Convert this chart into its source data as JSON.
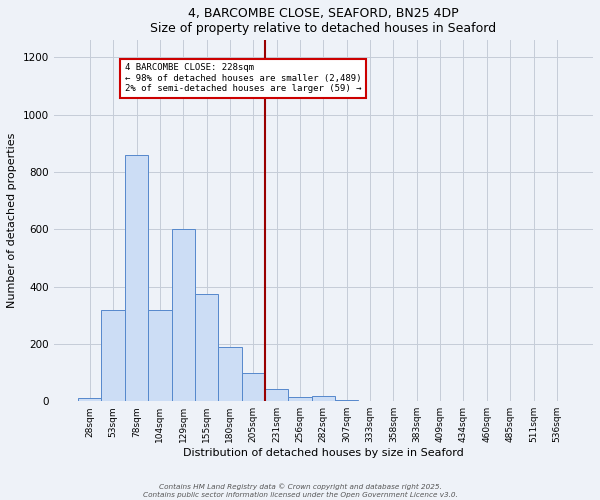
{
  "title": "4, BARCOMBE CLOSE, SEAFORD, BN25 4DP",
  "subtitle": "Size of property relative to detached houses in Seaford",
  "xlabel": "Distribution of detached houses by size in Seaford",
  "ylabel": "Number of detached properties",
  "bar_categories": [
    "28sqm",
    "53sqm",
    "78sqm",
    "104sqm",
    "129sqm",
    "155sqm",
    "180sqm",
    "205sqm",
    "231sqm",
    "256sqm",
    "282sqm",
    "307sqm",
    "333sqm",
    "358sqm",
    "383sqm",
    "409sqm",
    "434sqm",
    "460sqm",
    "485sqm",
    "511sqm",
    "536sqm"
  ],
  "bar_values": [
    10,
    320,
    860,
    320,
    600,
    375,
    190,
    100,
    43,
    15,
    20,
    5,
    2,
    0,
    0,
    0,
    1,
    0,
    0,
    1,
    0
  ],
  "bar_color": "#ccddf5",
  "bar_edge_color": "#5588cc",
  "vline_color": "#990000",
  "vline_x_index": 8,
  "annotation_title": "4 BARCOMBE CLOSE: 228sqm",
  "annotation_line1": "← 98% of detached houses are smaller (2,489)",
  "annotation_line2": "2% of semi-detached houses are larger (59) →",
  "annotation_box_color": "#ffffff",
  "annotation_box_edge": "#cc0000",
  "ylim": [
    0,
    1260
  ],
  "yticks": [
    0,
    200,
    400,
    600,
    800,
    1000,
    1200
  ],
  "background_color": "#eef2f8",
  "grid_color": "#c5ccd8",
  "footer1": "Contains HM Land Registry data © Crown copyright and database right 2025.",
  "footer2": "Contains public sector information licensed under the Open Government Licence v3.0."
}
